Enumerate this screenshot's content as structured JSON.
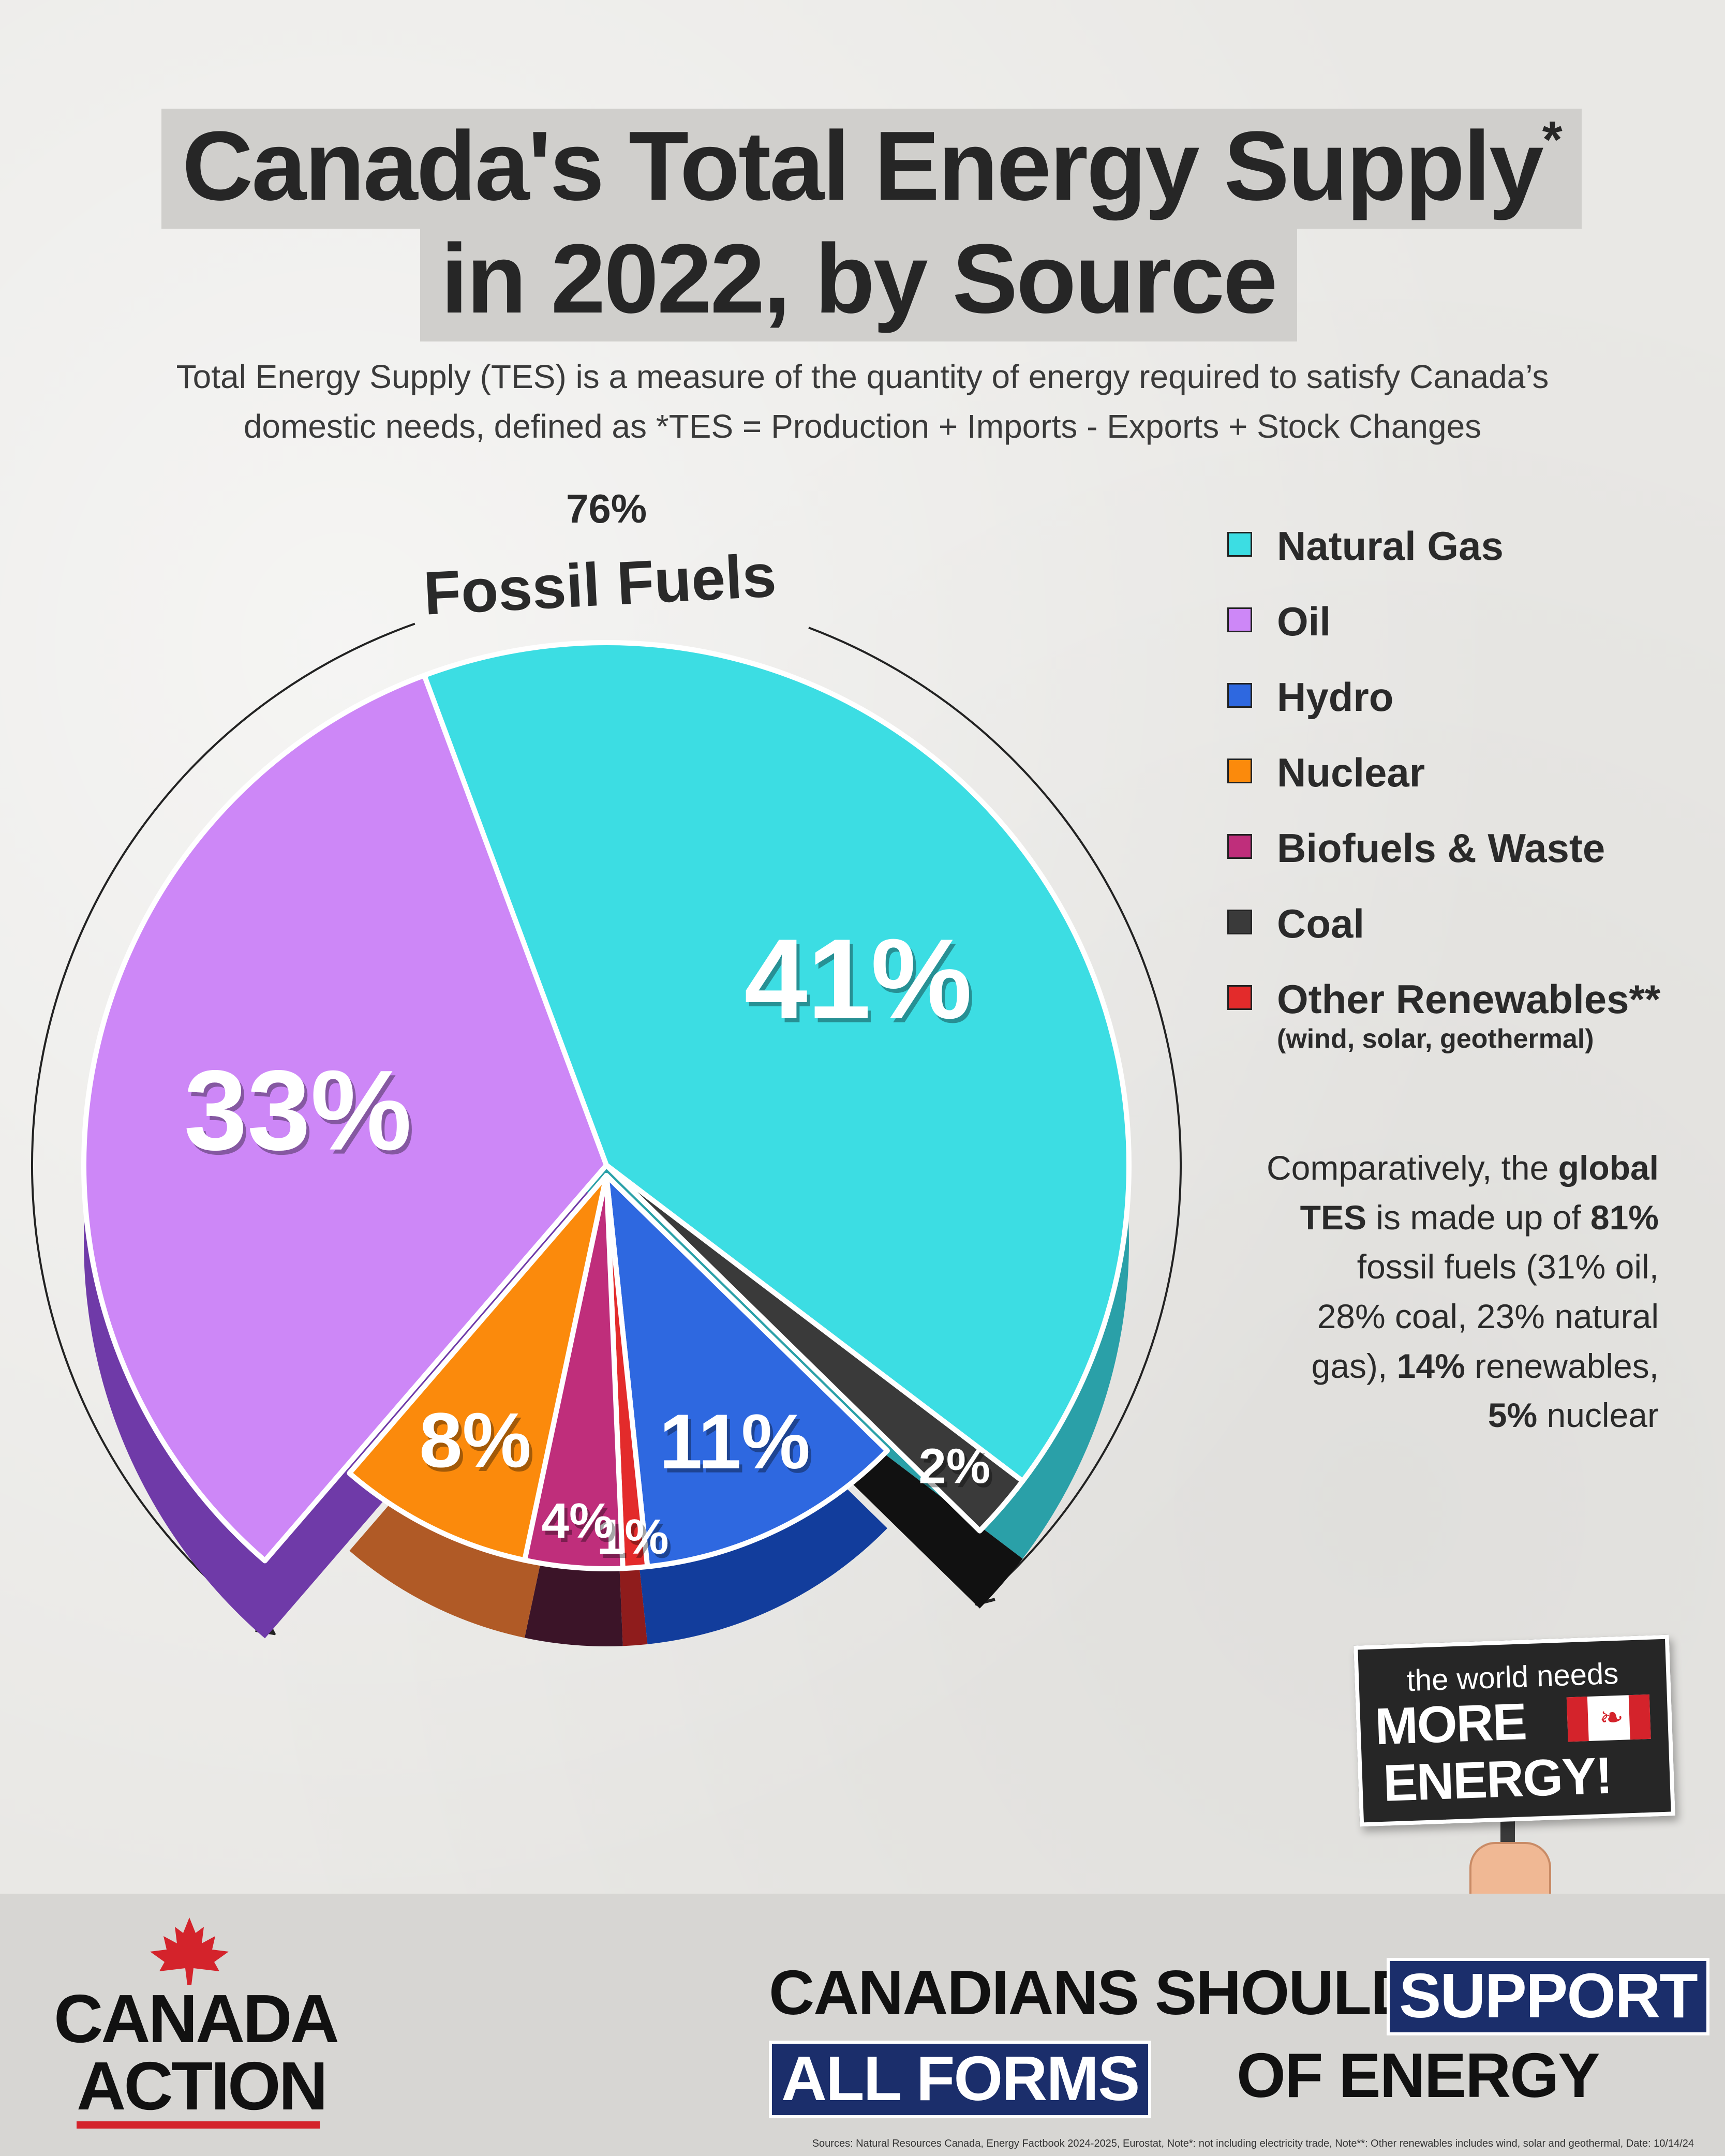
{
  "title": {
    "line1": "Canada's Total Energy Supply",
    "asterisk": "*",
    "line2": "in 2022, by Source"
  },
  "subtitle": {
    "line1": "Total Energy Supply (TES) is a measure of the quantity of energy required to satisfy Canada’s",
    "line2": "domestic needs, defined as *TES = Production + Imports - Exports + Stock Changes"
  },
  "fossil_callout": {
    "percent": "76%",
    "label": "Fossil Fuels"
  },
  "chart_data": {
    "type": "pie",
    "title": "Canada's Total Energy Supply* in 2022, by Source",
    "slices": [
      {
        "name": "Natural Gas",
        "value": 41,
        "label": "41%",
        "color": "#3cdde3",
        "side_color": "#2aa0a8"
      },
      {
        "name": "Coal",
        "value": 2,
        "label": "2%",
        "color": "#3a3a3a",
        "side_color": "#111111"
      },
      {
        "name": "Hydro",
        "value": 11,
        "label": "11%",
        "color": "#2e68e0",
        "side_color": "#123d9c"
      },
      {
        "name": "Other Renewables**",
        "value": 1,
        "label": "1%",
        "color": "#e32b2b",
        "side_color": "#8f1c1c"
      },
      {
        "name": "Biofuels & Waste",
        "value": 4,
        "label": "4%",
        "color": "#bf2e7b",
        "side_color": "#3b1428"
      },
      {
        "name": "Nuclear",
        "value": 8,
        "label": "8%",
        "color": "#fb8a0c",
        "side_color": "#b05a26"
      },
      {
        "name": "Oil",
        "value": 33,
        "label": "33%",
        "color": "#cd87f7",
        "side_color": "#6f3aa8"
      }
    ],
    "legend_position": "right"
  },
  "legend": [
    {
      "label": "Natural Gas",
      "color": "#3cdde3"
    },
    {
      "label": "Oil",
      "color": "#cd87f7"
    },
    {
      "label": "Hydro",
      "color": "#2e68e0"
    },
    {
      "label": "Nuclear",
      "color": "#fb8a0c"
    },
    {
      "label": "Biofuels & Waste",
      "color": "#bf2e7b"
    },
    {
      "label": "Coal",
      "color": "#3a3a3a"
    },
    {
      "label": "Other Renewables**",
      "color": "#e32b2b",
      "sub": "(wind, solar, geothermal)"
    }
  ],
  "comparison": {
    "t1": "Comparatively, the ",
    "b1": "global",
    "b2": "TES",
    "t2": " is made up of ",
    "b3": "81%",
    "t3": "fossil fuels (31% oil,",
    "t4": "28% coal, 23% natural",
    "t5": "gas), ",
    "b4": "14%",
    "t6": " renewables,",
    "b5": "5%",
    "t7": " nuclear"
  },
  "sign": {
    "small": "the world needs",
    "more": "MORE",
    "energy": "ENERGY!"
  },
  "logo": {
    "line1": "CANADA",
    "line2": "ACTION"
  },
  "tagline": {
    "p1": "CANADIANS SHOULD",
    "p2": "SUPPORT",
    "p3": "ALL FORMS",
    "p4": "OF ENERGY"
  },
  "sources": "Sources: Natural Resources Canada, Energy Factbook 2024-2025, Eurostat, Note*: not including electricity trade, Note**: Other renewables includes wind, solar and geothermal, Date: 10/14/24",
  "colors": {
    "brand_red": "#d4232b",
    "brand_navy": "#1b2e6b"
  }
}
